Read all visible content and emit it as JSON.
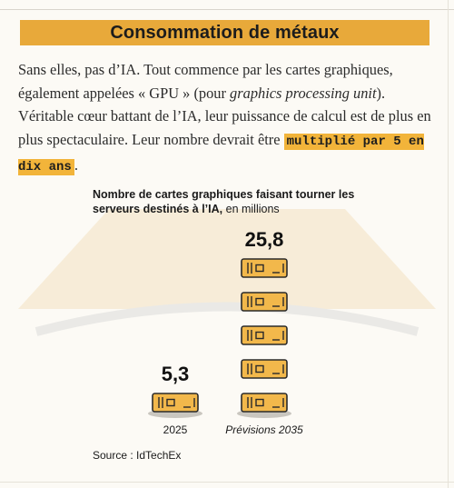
{
  "section_title": "Consommation de métaux",
  "intro": {
    "part1": "Sans elles, pas d’IA. Tout commence par les cartes graphiques, également appelées « GPU » (pour ",
    "italic": "graphics processing unit",
    "part2": "). Véritable cœur battant de l’IA, leur puissance de calcul est de plus en plus spectaculaire. Leur nombre devrait être ",
    "highlight": "multiplié par 5 en dix ans",
    "end": "."
  },
  "chart_data": {
    "type": "bar",
    "title_bold": "Nombre de cartes graphiques faisant tourner les serveurs destinés à l’IA,",
    "title_unit": " en millions",
    "categories": [
      "2025",
      "Prévisions 2035"
    ],
    "values": [
      5.3,
      25.8
    ],
    "value_labels": [
      "5,3",
      "25,8"
    ],
    "icon": "gpu-card-icon",
    "colors": {
      "card": "#f2b84b",
      "card_stroke": "#2a2a2a",
      "shadow": "#c9c6bf"
    }
  },
  "source": "Source : IdTechEx",
  "colors": {
    "banner": "#e8a93a",
    "highlight": "#f2b43a",
    "background": "#fcfaf5"
  }
}
